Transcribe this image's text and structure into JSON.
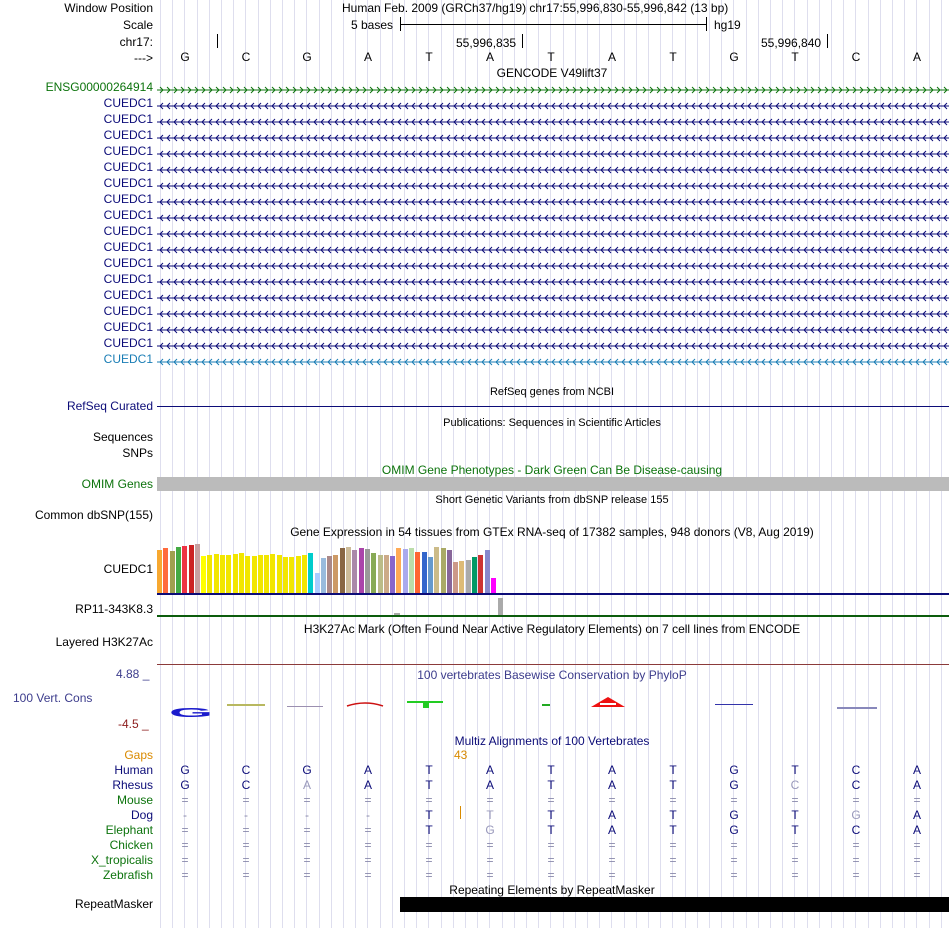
{
  "header": {
    "window_position_label": "Window Position",
    "window_position_value": "Human Feb. 2009 (GRCh37/hg19)   chr17:55,996,830-55,996,842 (13 bp)",
    "scale_label": "Scale",
    "scale_text": "5 bases",
    "assembly": "hg19",
    "chrom_label": "chr17:",
    "coord1": "55,996,835",
    "coord2": "55,996,840",
    "strand_label": "--->"
  },
  "bases": [
    "G",
    "C",
    "G",
    "A",
    "T",
    "A",
    "T",
    "A",
    "T",
    "G",
    "T",
    "C",
    "A"
  ],
  "gencode": {
    "title": "GENCODE V49lift37",
    "first_gene": "ENSG00000264914",
    "genes": [
      "CUEDC1",
      "CUEDC1",
      "CUEDC1",
      "CUEDC1",
      "CUEDC1",
      "CUEDC1",
      "CUEDC1",
      "CUEDC1",
      "CUEDC1",
      "CUEDC1",
      "CUEDC1",
      "CUEDC1",
      "CUEDC1",
      "CUEDC1",
      "CUEDC1",
      "CUEDC1",
      "CUEDC1"
    ],
    "colors": {
      "green": "#0c730c",
      "navy": "#0c0c78",
      "blue": "#1a7db5"
    }
  },
  "refseq": {
    "title": "RefSeq genes from NCBI",
    "label": "RefSeq Curated"
  },
  "publications": {
    "title": "Publications: Sequences in Scientific Articles",
    "label1": "Sequences",
    "label2": "SNPs"
  },
  "omim": {
    "title": "OMIM Gene Phenotypes - Dark Green Can Be Disease-causing",
    "label": "OMIM Genes"
  },
  "dbsnp": {
    "title": "Short Genetic Variants from dbSNP release 155",
    "label": "Common dbSNP(155)"
  },
  "gtex": {
    "title": "Gene Expression in 54 tissues from GTEx RNA-seq of 17382 samples, 948 donors (V8, Aug 2019)",
    "label1": "CUEDC1",
    "label2": "RP11-343K8.3",
    "bar_heights": [
      0.85,
      0.88,
      0.82,
      0.9,
      0.93,
      0.95,
      0.97,
      0.72,
      0.75,
      0.76,
      0.74,
      0.75,
      0.77,
      0.78,
      0.72,
      0.73,
      0.75,
      0.74,
      0.76,
      0.75,
      0.7,
      0.71,
      0.72,
      0.75,
      0.78,
      0.4,
      0.68,
      0.72,
      0.75,
      0.88,
      0.9,
      0.85,
      0.88,
      0.86,
      0.78,
      0.75,
      0.74,
      0.72,
      0.88,
      0.86,
      0.88,
      0.8,
      0.8,
      0.7,
      0.9,
      0.88,
      0.85,
      0.6,
      0.62,
      0.65,
      0.7,
      0.75,
      0.85,
      0.3
    ],
    "bar_colors": [
      "#f7a830",
      "#ff6a3c",
      "#a0a050",
      "#44aa44",
      "#ee3344",
      "#cc2222",
      "#c8a0a0",
      "#ffff00",
      "#f2e600",
      "#f2e600",
      "#f2e600",
      "#f2e600",
      "#f2e600",
      "#f2e600",
      "#f2e600",
      "#f2e600",
      "#f2e600",
      "#f2e600",
      "#f2e600",
      "#f2e600",
      "#f2e600",
      "#f2e600",
      "#f2e600",
      "#f2e600",
      "#00cccc",
      "#aaccff",
      "#99bbdd",
      "#aa8888",
      "#cc9966",
      "#886644",
      "#ccbb99",
      "#aa88aa",
      "#aa44aa",
      "#999999",
      "#88aa55",
      "#bbbb88",
      "#ccaa88",
      "#8866cc",
      "#ffaa55",
      "#aaaaee",
      "#bbddaa",
      "#ff6633",
      "#3366cc",
      "#6699cc",
      "#ccbb88",
      "#aaaa66",
      "#886699",
      "#cc9988",
      "#ddbb77",
      "#aaaaaa",
      "#009966",
      "#cc3333",
      "#8888cc",
      "#ff00ff"
    ]
  },
  "h3k27": {
    "title": "H3K27Ac Mark (Often Found Near Active Regulatory Elements) on 7 cell lines from ENCODE",
    "label": "Layered H3K27Ac"
  },
  "conservation": {
    "title": "100 vertebrates Basewise Conservation by PhyloP",
    "label": "100 Vert. Cons",
    "max": "4.88 _",
    "min": "-4.5 _",
    "logo_letters": [
      "G",
      "A"
    ]
  },
  "multiz": {
    "title": "Multiz Alignments of 100 Vertebrates",
    "gaps_label": "Gaps",
    "gap_count": "43",
    "species": [
      {
        "name": "Human",
        "color": "#0c0c78",
        "bases": [
          "G",
          "C",
          "G",
          "A",
          "T",
          "A",
          "T",
          "A",
          "T",
          "G",
          "T",
          "C",
          "A"
        ]
      },
      {
        "name": "Rhesus",
        "color": "#0c0c78",
        "bases": [
          "G",
          "C",
          "A",
          "A",
          "T",
          "A",
          "T",
          "A",
          "T",
          "G",
          "C",
          "C",
          "A"
        ]
      },
      {
        "name": "Mouse",
        "color": "#0c730c",
        "bases": [
          "=",
          "=",
          "=",
          "=",
          "=",
          "=",
          "=",
          "=",
          "=",
          "=",
          "=",
          "=",
          "="
        ]
      },
      {
        "name": "Dog",
        "color": "#0c0c78",
        "bases": [
          "-",
          "-",
          "-",
          "-",
          "T",
          "T",
          "T",
          "A",
          "T",
          "G",
          "T",
          "G",
          "A"
        ]
      },
      {
        "name": "Elephant",
        "color": "#0c730c",
        "bases": [
          "=",
          "=",
          "=",
          "=",
          "T",
          "G",
          "T",
          "A",
          "T",
          "G",
          "T",
          "C",
          "A"
        ]
      },
      {
        "name": "Chicken",
        "color": "#0c730c",
        "bases": [
          "=",
          "=",
          "=",
          "=",
          "=",
          "=",
          "=",
          "=",
          "=",
          "=",
          "=",
          "=",
          "="
        ]
      },
      {
        "name": "X_tropicalis",
        "color": "#0c730c",
        "bases": [
          "=",
          "=",
          "=",
          "=",
          "=",
          "=",
          "=",
          "=",
          "=",
          "=",
          "=",
          "=",
          "="
        ]
      },
      {
        "name": "Zebrafish",
        "color": "#0c730c",
        "bases": [
          "=",
          "=",
          "=",
          "=",
          "=",
          "=",
          "=",
          "=",
          "=",
          "=",
          "=",
          "=",
          "="
        ]
      }
    ]
  },
  "repeatmasker": {
    "title": "Repeating Elements by RepeatMasker",
    "label": "RepeatMasker"
  }
}
